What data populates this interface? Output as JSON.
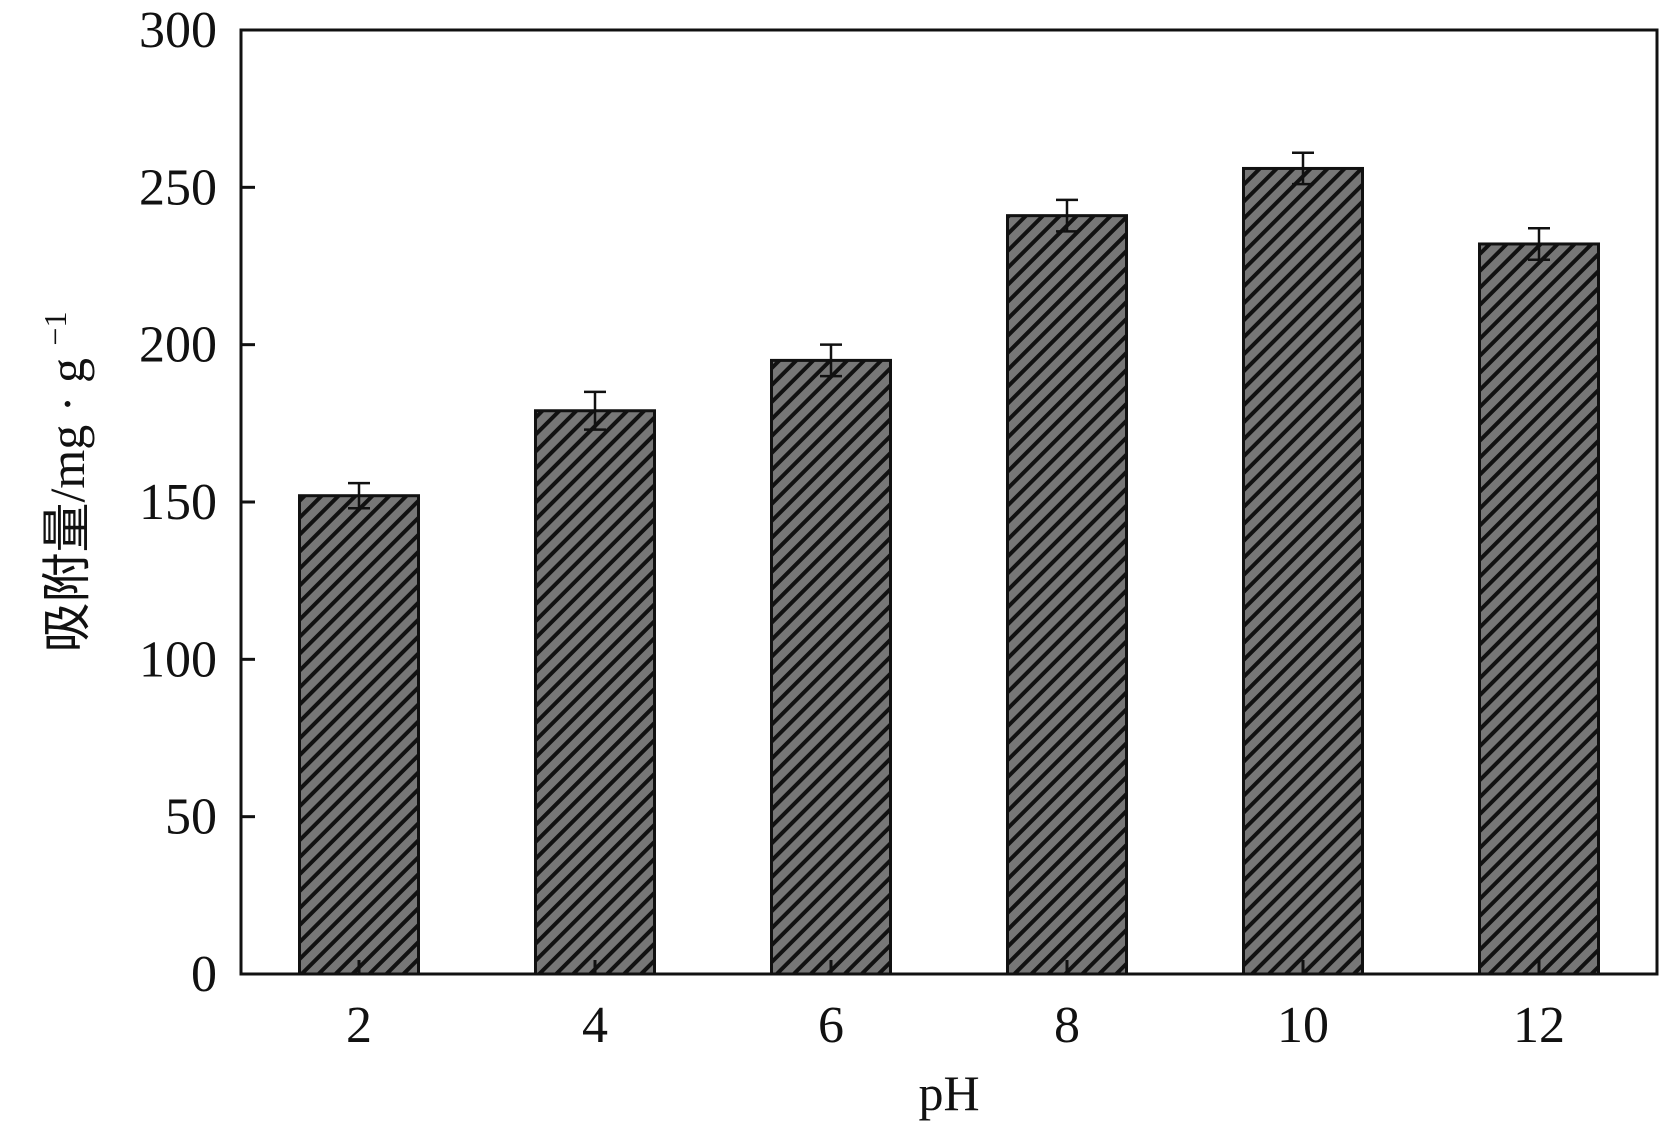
{
  "chart_data": {
    "type": "bar",
    "xlabel": "pH",
    "ylabel_main": "吸附量/mg · g",
    "ylabel_superscript": "−1",
    "categories": [
      "2",
      "4",
      "6",
      "8",
      "10",
      "12"
    ],
    "values": [
      152,
      179,
      195,
      241,
      256,
      232
    ],
    "error": [
      4,
      6,
      5,
      5,
      5,
      5
    ],
    "ylim": [
      0,
      300
    ],
    "yticks": [
      0,
      50,
      100,
      150,
      200,
      250,
      300
    ],
    "ytick_labels": [
      "0",
      "50",
      "100",
      "150",
      "200",
      "250",
      "300"
    ],
    "grid": false,
    "legend": "none",
    "bar_fill": "#777777",
    "hatch_color": "#111111",
    "frame_color": "#111111"
  }
}
